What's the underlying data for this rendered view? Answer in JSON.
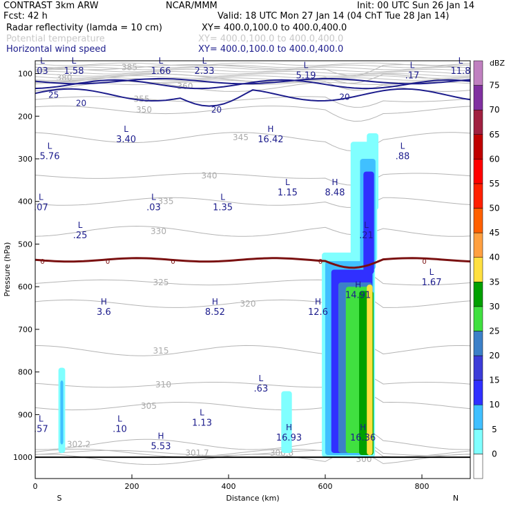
{
  "header": {
    "model": "CONTRAST  3km ARW",
    "fcst": "Fcst:    42 h",
    "producer": "NCAR/MMM",
    "init": "Init: 00 UTC Sun 26 Jan 14",
    "valid": "Valid: 18 UTC Mon 27 Jan 14 (04 ChT Tue 28 Jan 14)",
    "field1": "Radar reflectivity (lamda = 10 cm)",
    "field1_xy": "XY= 400.0,100.0 to 400.0,400.0",
    "field2": "Potential temperature",
    "field2_xy": "XY= 400.0,100.0 to 400.0,400.0",
    "field3": "Horizontal wind speed",
    "field3_xy": "XY= 400.0,100.0 to 400.0,400.0"
  },
  "chart_data": {
    "type": "cross-section",
    "xlabel": "Distance (km)",
    "ylabel": "Pressure (hPa)",
    "xlim": [
      0,
      900
    ],
    "ylim": [
      1050,
      70
    ],
    "xticks": [
      0,
      200,
      400,
      600,
      800
    ],
    "yticks": [
      100,
      200,
      300,
      400,
      500,
      600,
      700,
      800,
      900,
      1000
    ],
    "end_labels": {
      "left": "S",
      "right": "N"
    },
    "colorbar": {
      "unit": "dBZ",
      "levels": [
        0,
        5,
        10,
        15,
        20,
        25,
        30,
        35,
        40,
        45,
        50,
        55,
        60,
        65,
        70,
        75
      ],
      "colors": [
        "#ffffff",
        "#80ffff",
        "#40c0ff",
        "#3030ff",
        "#3c3cd8",
        "#3c80c8",
        "#40e040",
        "#00a000",
        "#ffe040",
        "#ffa040",
        "#ff6000",
        "#ff2000",
        "#ff0000",
        "#c00000",
        "#a02040",
        "#8030a0",
        "#c080c0"
      ]
    },
    "reflectivity_cells": [
      {
        "x": 55,
        "p_top": 790,
        "p_bottom": 990,
        "max_dbz": 10
      },
      {
        "x": 520,
        "p_top": 845,
        "p_bottom": 990,
        "max_dbz": 5
      },
      {
        "x_range": [
          600,
          710
        ],
        "p_top": 240,
        "p_bottom": 1000,
        "max_dbz": 40
      }
    ],
    "theta_contours": [
      {
        "value": 385,
        "x": 195,
        "p": 85
      },
      {
        "value": 380,
        "x": 60,
        "p": 110
      },
      {
        "value": 360,
        "x": 310,
        "p": 130
      },
      {
        "value": 355,
        "x": 220,
        "p": 160
      },
      {
        "value": 350,
        "x": 225,
        "p": 185
      },
      {
        "value": 345,
        "x": 425,
        "p": 250
      },
      {
        "value": 340,
        "x": 360,
        "p": 340
      },
      {
        "value": 335,
        "x": 270,
        "p": 400
      },
      {
        "value": 330,
        "x": 255,
        "p": 470
      },
      {
        "value": 325,
        "x": 260,
        "p": 590
      },
      {
        "value": 320,
        "x": 440,
        "p": 640
      },
      {
        "value": 315,
        "x": 260,
        "p": 750
      },
      {
        "value": 310,
        "x": 265,
        "p": 830
      },
      {
        "value": 305,
        "x": 235,
        "p": 880
      },
      {
        "value": 302.2,
        "x": 90,
        "p": 970
      },
      {
        "value": 301.7,
        "x": 335,
        "p": 990
      },
      {
        "value": 300.8,
        "x": 510,
        "p": 990
      },
      {
        "value": 300,
        "x": 680,
        "p": 1005
      }
    ],
    "wind_contours": [
      {
        "value": 25,
        "x": 38,
        "p": 150
      },
      {
        "value": 20,
        "x": 95,
        "p": 170
      },
      {
        "value": 20,
        "x": 640,
        "p": 155
      },
      {
        "value": 20,
        "x": 375,
        "p": 185
      }
    ],
    "zero_line_label": "0",
    "extrema": [
      {
        "type": "L",
        "value": "03",
        "x": 15,
        "p": 80
      },
      {
        "type": "L",
        "value": "1.58",
        "x": 80,
        "p": 80
      },
      {
        "type": "L",
        "value": "1.66",
        "x": 260,
        "p": 80
      },
      {
        "type": "L",
        "value": "2.33",
        "x": 350,
        "p": 80
      },
      {
        "type": "L",
        "value": "5.19",
        "x": 560,
        "p": 90
      },
      {
        "type": "L",
        "value": ".17",
        "x": 780,
        "p": 90
      },
      {
        "type": "L",
        "value": "11.8",
        "x": 880,
        "p": 80
      },
      {
        "type": "L",
        "value": "5.76",
        "x": 30,
        "p": 280
      },
      {
        "type": "L",
        "value": "3.40",
        "x": 188,
        "p": 240
      },
      {
        "type": "H",
        "value": "16.42",
        "x": 487,
        "p": 240
      },
      {
        "type": "L",
        "value": ".88",
        "x": 760,
        "p": 280
      },
      {
        "type": "L",
        "value": "1.15",
        "x": 522,
        "p": 365
      },
      {
        "type": "H",
        "value": "8.48",
        "x": 620,
        "p": 365
      },
      {
        "type": "L",
        "value": ".07",
        "x": 12,
        "p": 400
      },
      {
        "type": "L",
        "value": ".03",
        "x": 245,
        "p": 400
      },
      {
        "type": "L",
        "value": "1.35",
        "x": 388,
        "p": 400
      },
      {
        "type": "L",
        "value": ".25",
        "x": 93,
        "p": 465
      },
      {
        "type": "L",
        "value": ".21",
        "x": 685,
        "p": 465
      },
      {
        "type": "L",
        "value": "1.67",
        "x": 820,
        "p": 575
      },
      {
        "type": "H",
        "value": "14.91",
        "x": 668,
        "p": 605
      },
      {
        "type": "H",
        "value": "3.6",
        "x": 142,
        "p": 645
      },
      {
        "type": "H",
        "value": "8.52",
        "x": 372,
        "p": 645
      },
      {
        "type": "H",
        "value": "12.6",
        "x": 585,
        "p": 645
      },
      {
        "type": "L",
        "value": ".63",
        "x": 467,
        "p": 825
      },
      {
        "type": "L",
        "value": "1.13",
        "x": 345,
        "p": 905
      },
      {
        "type": "L",
        "value": ".57",
        "x": 12,
        "p": 920
      },
      {
        "type": "L",
        "value": ".10",
        "x": 175,
        "p": 920
      },
      {
        "type": "H",
        "value": "16.93",
        "x": 525,
        "p": 940
      },
      {
        "type": "H",
        "value": "16.36",
        "x": 678,
        "p": 940
      },
      {
        "type": "H",
        "value": "5.53",
        "x": 260,
        "p": 960
      }
    ]
  }
}
